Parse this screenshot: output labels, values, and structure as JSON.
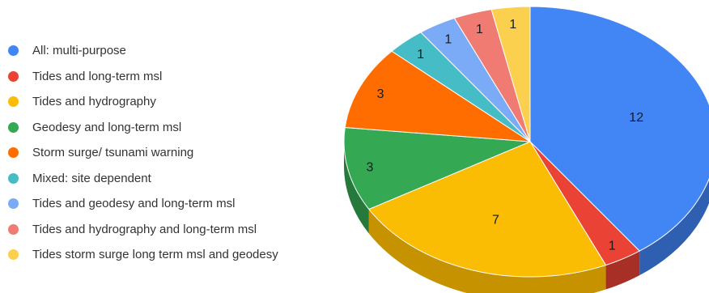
{
  "chart_data": {
    "type": "pie",
    "title": "",
    "three_d": true,
    "legend_position": "left",
    "categories": [
      "All: multi-purpose",
      "Tides and long-term msl",
      "Tides and hydrography",
      "Geodesy and long-term msl",
      "Storm surge/ tsunami warning",
      "Mixed: site dependent",
      "Tides and geodesy and long-term msl",
      "Tides and hydrography and long-term msl",
      "Tides storm surge long term msl and geodesy"
    ],
    "values": [
      12,
      1,
      7,
      3,
      3,
      1,
      1,
      1,
      1
    ],
    "colors": [
      "#4285f4",
      "#ea4335",
      "#fbbc04",
      "#34a853",
      "#ff6d01",
      "#46bdc6",
      "#7baaf7",
      "#f07b72",
      "#fcd04f"
    ],
    "side_colors": [
      "#2f5fb0",
      "#a82f26",
      "#c69200",
      "#257a3b",
      "#c45200",
      "#328890",
      "#5a7fbf",
      "#b45a54",
      "#c9a23c"
    ]
  }
}
